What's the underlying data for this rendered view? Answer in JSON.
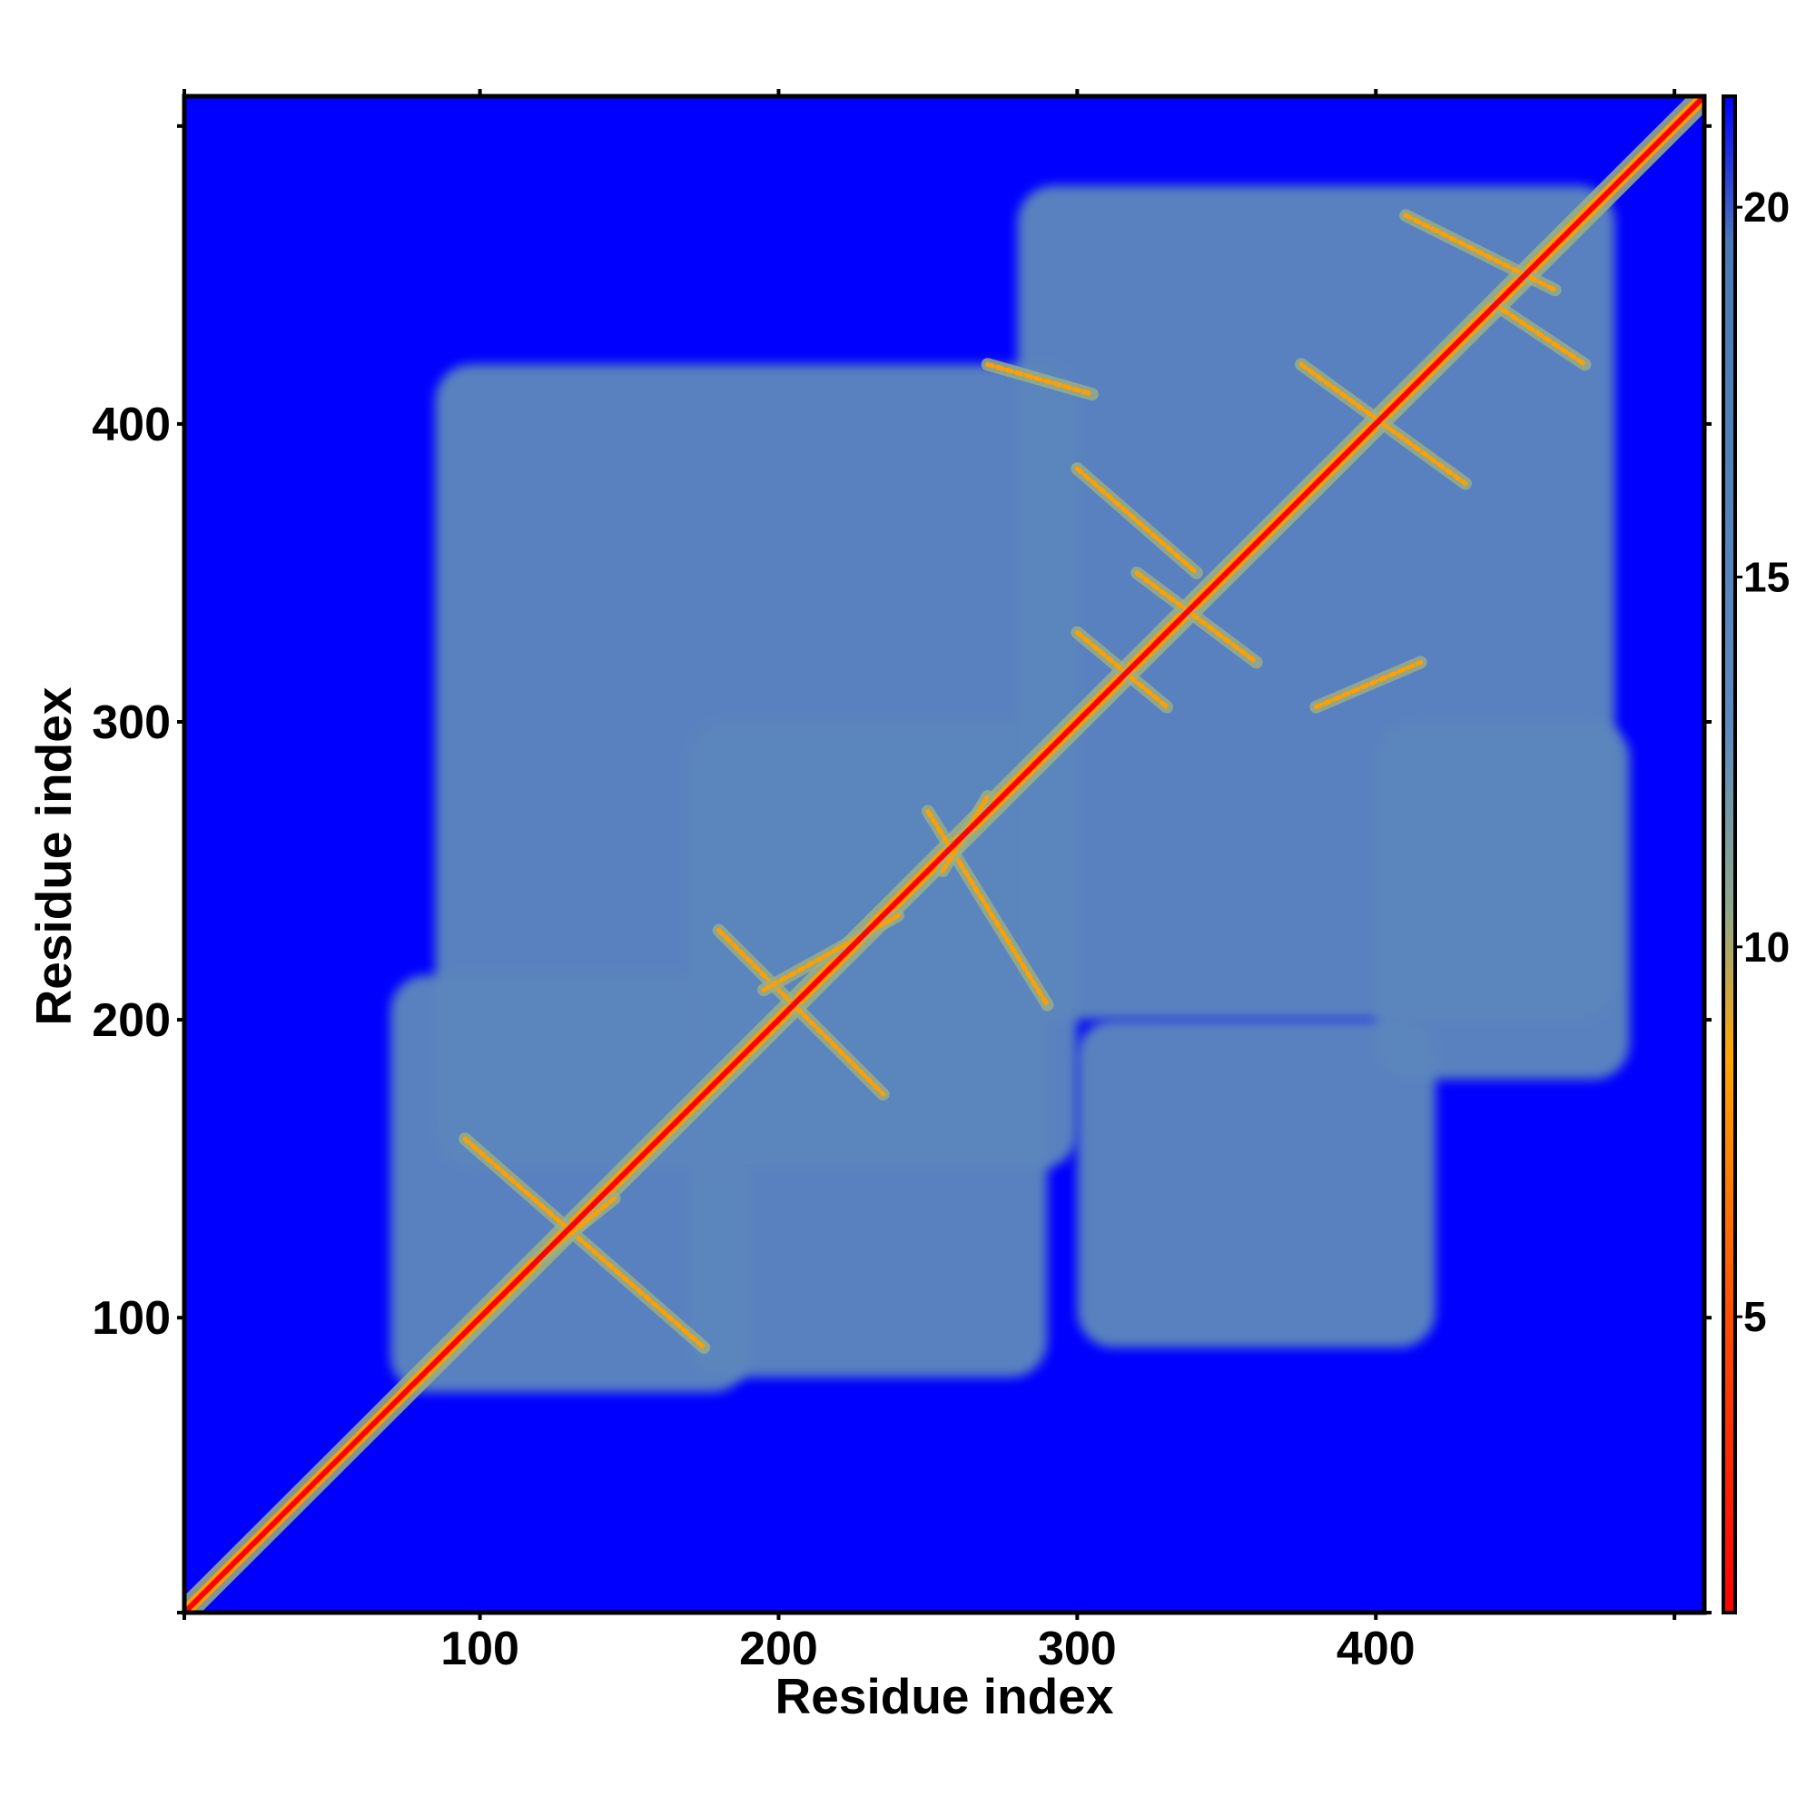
{
  "chart_data": {
    "type": "heatmap",
    "title": "",
    "xlabel": "Residue index",
    "ylabel": "Residue index",
    "xlim": [
      1,
      510
    ],
    "ylim": [
      1,
      510
    ],
    "x_ticks": [
      {
        "value": 100,
        "label": "100"
      },
      {
        "value": 200,
        "label": "200"
      },
      {
        "value": 300,
        "label": "300"
      },
      {
        "value": 400,
        "label": "400"
      }
    ],
    "y_ticks": [
      {
        "value": 100,
        "label": "100"
      },
      {
        "value": 200,
        "label": "200"
      },
      {
        "value": 300,
        "label": "300"
      },
      {
        "value": 400,
        "label": "400"
      }
    ],
    "x_minor_ticks": [
      1,
      500
    ],
    "y_minor_ticks": [
      1,
      500
    ],
    "colorbar": {
      "range": [
        1,
        21.5
      ],
      "ticks": [
        {
          "value": 5,
          "label": "5"
        },
        {
          "value": 10,
          "label": "10"
        },
        {
          "value": 15,
          "label": "15"
        },
        {
          "value": 20,
          "label": "20"
        }
      ],
      "color_stops": [
        {
          "value": 1,
          "color": "#ff0000"
        },
        {
          "value": 5,
          "color": "#ff4d00"
        },
        {
          "value": 8.5,
          "color": "#ffa500"
        },
        {
          "value": 10.5,
          "color": "#8fa88a"
        },
        {
          "value": 13,
          "color": "#5b8ac0"
        },
        {
          "value": 19.5,
          "color": "#4a7ab5"
        },
        {
          "value": 21.5,
          "color": "#0000ff"
        }
      ]
    },
    "colors": {
      "background": "#0000ff",
      "contact_region": "#5b86bd",
      "near_contact": "#9cb084",
      "close_contact": "#ff9f00",
      "diagonal": "#ff0000"
    },
    "contact_regions": [
      {
        "x_range": [
          70,
          190
        ],
        "y_range": [
          75,
          215
        ],
        "level": 15
      },
      {
        "x_range": [
          170,
          290
        ],
        "y_range": [
          80,
          300
        ],
        "level": 15
      },
      {
        "x_range": [
          85,
          300
        ],
        "y_range": [
          150,
          420
        ],
        "level": 15
      },
      {
        "x_range": [
          280,
          480
        ],
        "y_range": [
          200,
          480
        ],
        "level": 15
      },
      {
        "x_range": [
          300,
          420
        ],
        "y_range": [
          90,
          200
        ],
        "level": 15
      },
      {
        "x_range": [
          400,
          485
        ],
        "y_range": [
          180,
          300
        ],
        "level": 15
      }
    ],
    "contact_arcs": [
      {
        "x": [
          95,
          175
        ],
        "y": [
          160,
          90
        ]
      },
      {
        "x": [
          120,
          145
        ],
        "y": [
          120,
          140
        ]
      },
      {
        "x": [
          180,
          235
        ],
        "y": [
          230,
          175
        ]
      },
      {
        "x": [
          195,
          240
        ],
        "y": [
          210,
          235
        ]
      },
      {
        "x": [
          250,
          290
        ],
        "y": [
          270,
          205
        ]
      },
      {
        "x": [
          255,
          270
        ],
        "y": [
          250,
          275
        ]
      },
      {
        "x": [
          300,
          340
        ],
        "y": [
          385,
          350
        ]
      },
      {
        "x": [
          320,
          360
        ],
        "y": [
          350,
          320
        ]
      },
      {
        "x": [
          380,
          415
        ],
        "y": [
          305,
          320
        ]
      },
      {
        "x": [
          410,
          460
        ],
        "y": [
          470,
          445
        ]
      },
      {
        "x": [
          440,
          470
        ],
        "y": [
          440,
          420
        ]
      },
      {
        "x": [
          375,
          430
        ],
        "y": [
          420,
          380
        ]
      },
      {
        "x": [
          270,
          305
        ],
        "y": [
          420,
          410
        ]
      },
      {
        "x": [
          300,
          330
        ],
        "y": [
          330,
          305
        ]
      }
    ]
  }
}
